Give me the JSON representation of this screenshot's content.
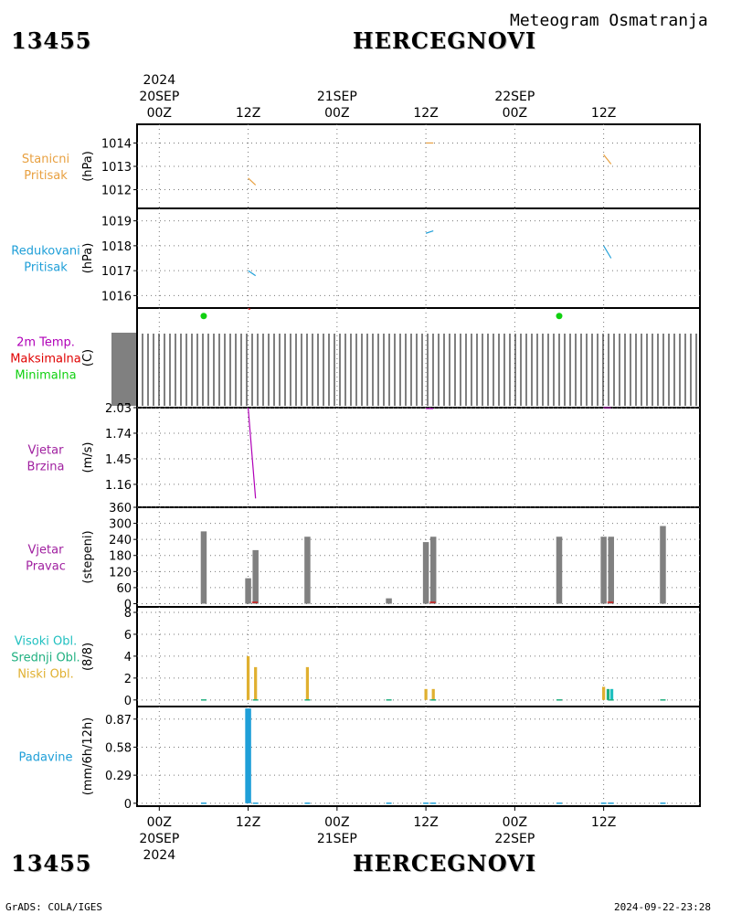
{
  "header": {
    "station_id": "13455",
    "station_name": "HERCEGNOVI",
    "title": "Meteogram Osmatranja"
  },
  "footer": {
    "left": "GrADS: COLA/IGES",
    "right": "2024-09-22-23:28"
  },
  "top_axis": {
    "year": "2024",
    "labels": [
      {
        "hour": 0,
        "time": "00Z",
        "date": "20SEP"
      },
      {
        "hour": 12,
        "time": "12Z",
        "date": ""
      },
      {
        "hour": 24,
        "time": "00Z",
        "date": "21SEP"
      },
      {
        "hour": 36,
        "time": "12Z",
        "date": ""
      },
      {
        "hour": 48,
        "time": "00Z",
        "date": "22SEP"
      },
      {
        "hour": 60,
        "time": "12Z",
        "date": ""
      }
    ]
  },
  "bottom_axis": {
    "year": "2024",
    "labels": [
      {
        "hour": 0,
        "time": "00Z",
        "date": "20SEP"
      },
      {
        "hour": 12,
        "time": "12Z",
        "date": ""
      },
      {
        "hour": 24,
        "time": "00Z",
        "date": "21SEP"
      },
      {
        "hour": 36,
        "time": "12Z",
        "date": ""
      },
      {
        "hour": 48,
        "time": "00Z",
        "date": "22SEP"
      },
      {
        "hour": 60,
        "time": "12Z",
        "date": ""
      }
    ]
  },
  "colors": {
    "orange": "#e8a040",
    "blue": "#1f9fd8",
    "magenta": "#b000b8",
    "red": "#e00000",
    "green": "#10d010",
    "gray": "#808080",
    "teal": "#20c0c0",
    "green2": "#20b080",
    "yellow": "#e0b030",
    "purple": "#a020a0",
    "red2": "#c00020"
  },
  "chart_data": {
    "type": "line",
    "x_unit": "hours since 20SEP2024 00Z",
    "xlim": [
      -3,
      73
    ],
    "panels": [
      {
        "id": "station-pressure",
        "labels": [
          {
            "text": "Stanicni",
            "color": "#e8a040"
          },
          {
            "text": "Pritisak",
            "color": "#e8a040"
          }
        ],
        "ylabel": "(hPa)",
        "yticks": [
          1012,
          1013,
          1014
        ],
        "ylim": [
          1011.2,
          1014.8
        ],
        "series": [
          {
            "type": "line",
            "color": "#e8a040",
            "points": [
              [
                12,
                1012.5
              ],
              [
                13,
                1012.2
              ]
            ]
          },
          {
            "type": "line",
            "color": "#e8a040",
            "points": [
              [
                36,
                1014.0
              ],
              [
                37,
                1014.0
              ]
            ]
          },
          {
            "type": "line",
            "color": "#e8a040",
            "points": [
              [
                60,
                1013.5
              ],
              [
                61,
                1013.1
              ]
            ]
          }
        ]
      },
      {
        "id": "reduced-pressure",
        "labels": [
          {
            "text": "Redukovani",
            "color": "#1f9fd8"
          },
          {
            "text": "Pritisak",
            "color": "#1f9fd8"
          }
        ],
        "ylabel": "(hPa)",
        "yticks": [
          1016,
          1017,
          1018,
          1019
        ],
        "ylim": [
          1015.5,
          1019.5
        ],
        "series": [
          {
            "type": "line",
            "color": "#1f9fd8",
            "points": [
              [
                12,
                1017.0
              ],
              [
                13,
                1016.8
              ]
            ]
          },
          {
            "type": "line",
            "color": "#1f9fd8",
            "points": [
              [
                36,
                1018.5
              ],
              [
                37,
                1018.6
              ]
            ]
          },
          {
            "type": "line",
            "color": "#1f9fd8",
            "points": [
              [
                60,
                1018.0
              ],
              [
                61,
                1017.5
              ]
            ]
          }
        ]
      },
      {
        "id": "temperature",
        "labels": [
          {
            "text": "2m Temp.",
            "color": "#b000b8"
          },
          {
            "text": "Maksimalna",
            "color": "#e00000"
          },
          {
            "text": "Minimalna",
            "color": "#10d010"
          }
        ],
        "ylabel": "(C)",
        "yticks": [],
        "ylim": [
          0,
          1
        ],
        "dense_lines": true,
        "series": [
          {
            "type": "dots",
            "color": "#10d010",
            "points": [
              [
                6,
                0.92
              ],
              [
                54,
                0.92
              ]
            ]
          },
          {
            "type": "line",
            "color": "#e00000",
            "points": [
              [
                12,
                0.99
              ],
              [
                12.3,
                0.99
              ]
            ]
          }
        ]
      },
      {
        "id": "wind-speed",
        "labels": [
          {
            "text": "Vjetar",
            "color": "#a020a0"
          },
          {
            "text": "Brzina",
            "color": "#a020a0"
          }
        ],
        "ylabel": "(m/s)",
        "yticks": [
          1.16,
          1.45,
          1.74,
          2.03
        ],
        "ylim": [
          0.9,
          2.03
        ],
        "series": [
          {
            "type": "line",
            "color": "#b000b8",
            "points": [
              [
                12,
                2.03
              ],
              [
                13,
                1.0
              ]
            ]
          },
          {
            "type": "line",
            "color": "#b000b8",
            "points": [
              [
                36,
                2.02
              ],
              [
                37,
                2.02
              ]
            ]
          },
          {
            "type": "line",
            "color": "#b000b8",
            "points": [
              [
                60,
                2.03
              ],
              [
                61,
                2.03
              ]
            ]
          }
        ]
      },
      {
        "id": "wind-direction",
        "labels": [
          {
            "text": "Vjetar",
            "color": "#a020a0"
          },
          {
            "text": "Pravac",
            "color": "#a020a0"
          }
        ],
        "ylabel": "(stepeni)",
        "yticks": [
          0,
          60,
          120,
          180,
          240,
          300,
          360
        ],
        "ylim": [
          -12,
          360
        ],
        "series": [
          {
            "type": "bars",
            "color": "#808080",
            "width": 0.8,
            "points": [
              [
                6,
                270
              ],
              [
                12,
                95
              ],
              [
                13,
                200
              ],
              [
                20,
                250
              ],
              [
                31,
                20
              ],
              [
                36,
                230
              ],
              [
                37,
                250
              ],
              [
                54,
                250
              ],
              [
                60,
                250
              ],
              [
                61,
                250
              ],
              [
                68,
                290
              ]
            ]
          },
          {
            "type": "line",
            "color": "#e00000",
            "points": [
              [
                12.5,
                5
              ],
              [
                13.3,
                5
              ]
            ]
          },
          {
            "type": "line",
            "color": "#e00000",
            "points": [
              [
                36.5,
                5
              ],
              [
                37.3,
                5
              ]
            ]
          },
          {
            "type": "line",
            "color": "#e00000",
            "points": [
              [
                60.5,
                5
              ],
              [
                61.3,
                5
              ]
            ]
          }
        ]
      },
      {
        "id": "cloud-cover",
        "labels": [
          {
            "text": "Visoki Obl.",
            "color": "#20c0c0"
          },
          {
            "text": "Srednji Obl.",
            "color": "#20b080"
          },
          {
            "text": "Niski Obl.",
            "color": "#e0b030"
          }
        ],
        "ylabel": "(8/8)",
        "yticks": [
          0,
          2,
          4,
          6,
          8
        ],
        "ylim": [
          -0.6,
          8.5
        ],
        "series": [
          {
            "type": "bars",
            "color": "#e0b030",
            "width": 0.4,
            "points": [
              [
                12,
                4
              ],
              [
                13,
                3
              ],
              [
                20,
                3
              ],
              [
                36,
                1
              ],
              [
                37,
                1
              ],
              [
                60,
                1.2
              ]
            ]
          },
          {
            "type": "bars",
            "color": "#20b080",
            "width": 0.4,
            "points": [
              [
                60.6,
                1
              ]
            ]
          },
          {
            "type": "bars",
            "color": "#20c0c0",
            "width": 0.4,
            "points": [
              [
                61.1,
                1
              ]
            ]
          },
          {
            "type": "ticks",
            "color": "#20b080",
            "points": [
              [
                6,
                0
              ],
              [
                13,
                0
              ],
              [
                20,
                0
              ],
              [
                31,
                0
              ],
              [
                37,
                0
              ],
              [
                54,
                0
              ],
              [
                61,
                0
              ],
              [
                68,
                0
              ]
            ]
          }
        ]
      },
      {
        "id": "precipitation",
        "labels": [
          {
            "text": "Padavine",
            "color": "#1f9fd8"
          }
        ],
        "ylabel": "(mm/6h/12h)",
        "yticks": [
          0,
          0.29,
          0.58,
          0.87
        ],
        "ylim": [
          -0.03,
          1.0
        ],
        "series": [
          {
            "type": "bars",
            "color": "#1f9fd8",
            "width": 0.8,
            "points": [
              [
                12,
                0.98
              ]
            ]
          },
          {
            "type": "ticks",
            "color": "#1f9fd8",
            "points": [
              [
                6,
                0
              ],
              [
                13,
                0
              ],
              [
                20,
                0
              ],
              [
                31,
                0
              ],
              [
                36,
                0
              ],
              [
                37,
                0
              ],
              [
                54,
                0
              ],
              [
                60,
                0
              ],
              [
                61,
                0
              ],
              [
                68,
                0
              ]
            ]
          }
        ]
      }
    ]
  }
}
